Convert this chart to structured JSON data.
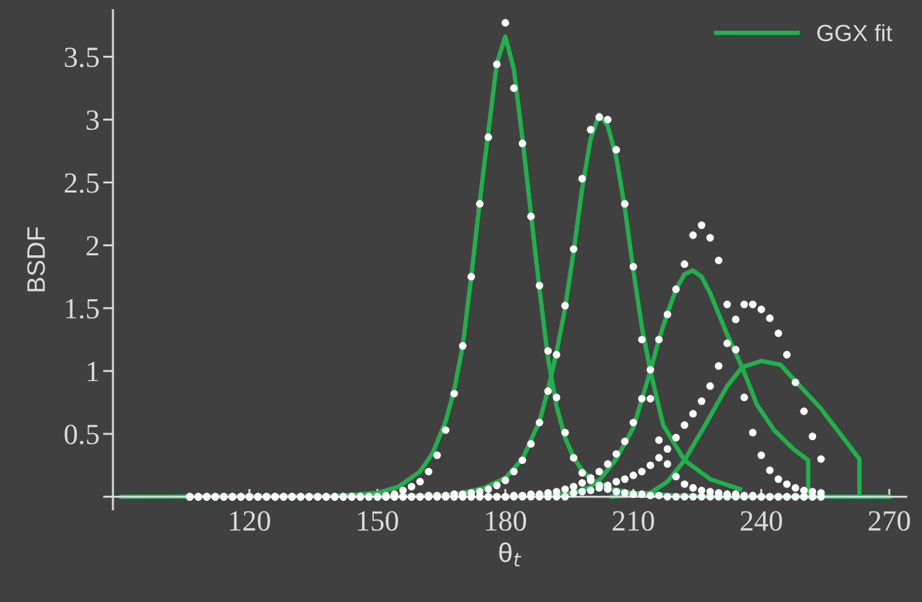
{
  "chart_data": {
    "type": "line",
    "xlabel": "θ$_{t}$",
    "ylabel": "BSDF",
    "xlim": [
      88,
      274
    ],
    "ylim": [
      -0.1,
      3.87
    ],
    "xticks": [
      120,
      150,
      180,
      210,
      240,
      270
    ],
    "yticks": [
      {
        "value": 0,
        "label": null
      },
      0.5,
      1,
      1.5,
      2,
      2.5,
      3,
      3.5
    ],
    "legend": "top right",
    "line_style": "solid",
    "series": [
      {
        "name": "GGX fit",
        "color": "#21b04b",
        "x": [
          90,
          140,
          150,
          155,
          160,
          163,
          166,
          168,
          170,
          172,
          174,
          176,
          178,
          180,
          182,
          184,
          186,
          188,
          190,
          192,
          194,
          196,
          198,
          200,
          205,
          210,
          220,
          230,
          270
        ],
        "values": [
          0,
          0.005,
          0.03,
          0.08,
          0.2,
          0.35,
          0.6,
          0.85,
          1.2,
          1.75,
          2.35,
          2.9,
          3.45,
          3.66,
          3.4,
          2.85,
          2.25,
          1.65,
          1.1,
          0.72,
          0.47,
          0.31,
          0.21,
          0.14,
          0.06,
          0.03,
          0.01,
          0,
          0
        ]
      },
      {
        "color": "#21b04b",
        "x": [
          150,
          165,
          170,
          175,
          180,
          184,
          188,
          190,
          192,
          194,
          196,
          198,
          200,
          202,
          204,
          206,
          208,
          210,
          212,
          214,
          217,
          222,
          228,
          235
        ],
        "values": [
          0,
          0.01,
          0.03,
          0.07,
          0.15,
          0.3,
          0.6,
          0.85,
          1.15,
          1.5,
          1.95,
          2.45,
          2.85,
          3.04,
          2.95,
          2.7,
          2.3,
          1.8,
          1.35,
          1.0,
          0.57,
          0.29,
          0.14,
          0.06
        ]
      },
      {
        "color": "#21b04b",
        "x": [
          180,
          190,
          196,
          200,
          202,
          206,
          210,
          214,
          216,
          218,
          220,
          222,
          224,
          226,
          228,
          232,
          235.5,
          239,
          243,
          247.5,
          251,
          251
        ],
        "values": [
          0,
          0.01,
          0.03,
          0.08,
          0.13,
          0.3,
          0.55,
          1.0,
          1.25,
          1.46,
          1.65,
          1.77,
          1.8,
          1.75,
          1.62,
          1.29,
          1.03,
          0.73,
          0.53,
          0.38,
          0.29,
          0
        ]
      },
      {
        "color": "#21b04b",
        "x": [
          205,
          214,
          218,
          222,
          227,
          232,
          235.5,
          240,
          244.5,
          248,
          254,
          263,
          263
        ],
        "values": [
          0,
          0.03,
          0.12,
          0.29,
          0.58,
          0.88,
          1.03,
          1.08,
          1.05,
          0.92,
          0.7,
          0.3,
          0
        ]
      },
      {
        "type": "scatter",
        "marker": "circle",
        "color": "#ffffff",
        "x": [
          106,
          108,
          110,
          112,
          114,
          116,
          118,
          120,
          122,
          124,
          126,
          128,
          130,
          132,
          134,
          136,
          138,
          140,
          142,
          144,
          146,
          148,
          150,
          152,
          154,
          156,
          158,
          160,
          162,
          164,
          166,
          168,
          170,
          172,
          174,
          176,
          178,
          180,
          182,
          184,
          186,
          188,
          190,
          192,
          194,
          196,
          198,
          200,
          202,
          204,
          206,
          208,
          210,
          212,
          214,
          216,
          218,
          220,
          222,
          224,
          226,
          228,
          230,
          232,
          234,
          236,
          238,
          240,
          242,
          244,
          246,
          248,
          250,
          252,
          254
        ],
        "values": [
          0,
          0,
          0,
          0,
          0,
          0,
          0,
          0,
          0,
          0,
          0,
          0,
          0,
          0,
          0,
          0,
          0,
          0,
          0,
          0,
          0,
          0,
          0,
          0.01,
          0.02,
          0.05,
          0.08,
          0.12,
          0.2,
          0.33,
          0.53,
          0.82,
          1.2,
          1.75,
          2.33,
          2.86,
          3.44,
          3.77,
          3.25,
          2.81,
          2.23,
          1.68,
          1.16,
          0.79,
          0.51,
          0.31,
          0.19,
          0.13,
          0.09,
          0.06,
          0.04,
          0.03,
          0.02,
          0.02,
          0.01,
          0.01,
          0,
          0,
          0,
          0,
          0,
          0,
          0,
          0,
          0,
          0,
          0,
          0,
          0,
          0,
          0,
          0,
          0,
          0,
          0
        ]
      },
      {
        "type": "scatter",
        "marker": "circle",
        "color": "#ffffff",
        "x": [
          106,
          108,
          110,
          112,
          114,
          116,
          118,
          120,
          122,
          124,
          126,
          128,
          130,
          132,
          134,
          136,
          138,
          140,
          142,
          144,
          146,
          148,
          150,
          152,
          154,
          156,
          158,
          160,
          162,
          164,
          166,
          168,
          170,
          172,
          174,
          176,
          178,
          180,
          182,
          184,
          186,
          188,
          190,
          192,
          194,
          196,
          198,
          200,
          202,
          204,
          206,
          208,
          210,
          212,
          214,
          216,
          218,
          220,
          222,
          224,
          226,
          228,
          230,
          232,
          234,
          236,
          238,
          240,
          242,
          244,
          246,
          248,
          250,
          252,
          254
        ],
        "values": [
          0,
          0,
          0,
          0,
          0,
          0,
          0,
          0,
          0,
          0,
          0,
          0,
          0,
          0,
          0,
          0,
          0,
          0,
          0,
          0,
          0,
          0,
          0,
          0,
          0,
          0,
          0,
          0,
          0.01,
          0.01,
          0.01,
          0.02,
          0.02,
          0.03,
          0.04,
          0.06,
          0.09,
          0.13,
          0.2,
          0.29,
          0.42,
          0.59,
          0.84,
          1.13,
          1.52,
          1.97,
          2.53,
          2.92,
          3.02,
          3.0,
          2.76,
          2.33,
          1.83,
          1.25,
          0.78,
          0.45,
          0.26,
          0.16,
          0.1,
          0.07,
          0.05,
          0.04,
          0.03,
          0.02,
          0.02,
          0.01,
          0.01,
          0,
          0,
          0,
          0,
          0,
          0,
          0,
          0
        ]
      },
      {
        "type": "scatter",
        "marker": "circle",
        "color": "#ffffff",
        "x": [
          106,
          108,
          110,
          112,
          114,
          116,
          118,
          120,
          122,
          124,
          126,
          128,
          130,
          132,
          134,
          136,
          138,
          140,
          142,
          144,
          146,
          148,
          150,
          152,
          154,
          156,
          158,
          160,
          162,
          164,
          166,
          168,
          170,
          172,
          174,
          176,
          178,
          180,
          182,
          184,
          186,
          188,
          190,
          192,
          194,
          196,
          198,
          200,
          202,
          204,
          206,
          208,
          210,
          212,
          214,
          216,
          218,
          220,
          222,
          224,
          226,
          228,
          230,
          232,
          234,
          236,
          238,
          240,
          242,
          244,
          246,
          248,
          250,
          252,
          254
        ],
        "values": [
          0,
          0,
          0,
          0,
          0,
          0,
          0,
          0,
          0,
          0,
          0,
          0,
          0,
          0,
          0,
          0,
          0,
          0,
          0,
          0,
          0,
          0,
          0,
          0,
          0,
          0,
          0,
          0,
          0,
          0,
          0,
          0,
          0,
          0,
          0,
          0,
          0,
          0,
          0.01,
          0.01,
          0.02,
          0.02,
          0.03,
          0.04,
          0.06,
          0.08,
          0.11,
          0.15,
          0.2,
          0.26,
          0.34,
          0.44,
          0.59,
          0.78,
          1.01,
          1.25,
          1.45,
          1.65,
          1.85,
          2.08,
          2.16,
          2.06,
          1.88,
          1.53,
          1.17,
          0.79,
          0.51,
          0.33,
          0.21,
          0.14,
          0.1,
          0.07,
          0.05,
          0.04,
          0.03
        ]
      },
      {
        "type": "scatter",
        "marker": "circle",
        "color": "#ffffff",
        "x": [
          106,
          108,
          110,
          112,
          114,
          116,
          118,
          120,
          122,
          124,
          126,
          128,
          130,
          132,
          134,
          136,
          138,
          140,
          142,
          144,
          146,
          148,
          150,
          152,
          154,
          156,
          158,
          160,
          162,
          164,
          166,
          168,
          170,
          172,
          174,
          176,
          178,
          180,
          182,
          184,
          186,
          188,
          190,
          192,
          194,
          196,
          198,
          200,
          202,
          204,
          206,
          208,
          210,
          212,
          214,
          216,
          218,
          220,
          222,
          224,
          226,
          228,
          230,
          232,
          234,
          236,
          238,
          240,
          242,
          244,
          246,
          248,
          250,
          252,
          254
        ],
        "values": [
          0,
          0,
          0,
          0,
          0,
          0,
          0,
          0,
          0,
          0,
          0,
          0,
          0,
          0,
          0,
          0,
          0,
          0,
          0,
          0,
          0,
          0,
          0,
          0,
          0,
          0,
          0,
          0,
          0,
          0,
          0,
          0,
          0,
          0,
          0,
          0,
          0,
          0,
          0,
          0,
          0,
          0,
          0,
          0,
          0,
          0.03,
          0.04,
          0.05,
          0.07,
          0.09,
          0.12,
          0.14,
          0.17,
          0.2,
          0.25,
          0.31,
          0.38,
          0.47,
          0.57,
          0.66,
          0.76,
          0.88,
          1.04,
          1.22,
          1.41,
          1.53,
          1.53,
          1.49,
          1.42,
          1.3,
          1.13,
          0.91,
          0.68,
          0.48,
          0.3
        ]
      }
    ]
  }
}
